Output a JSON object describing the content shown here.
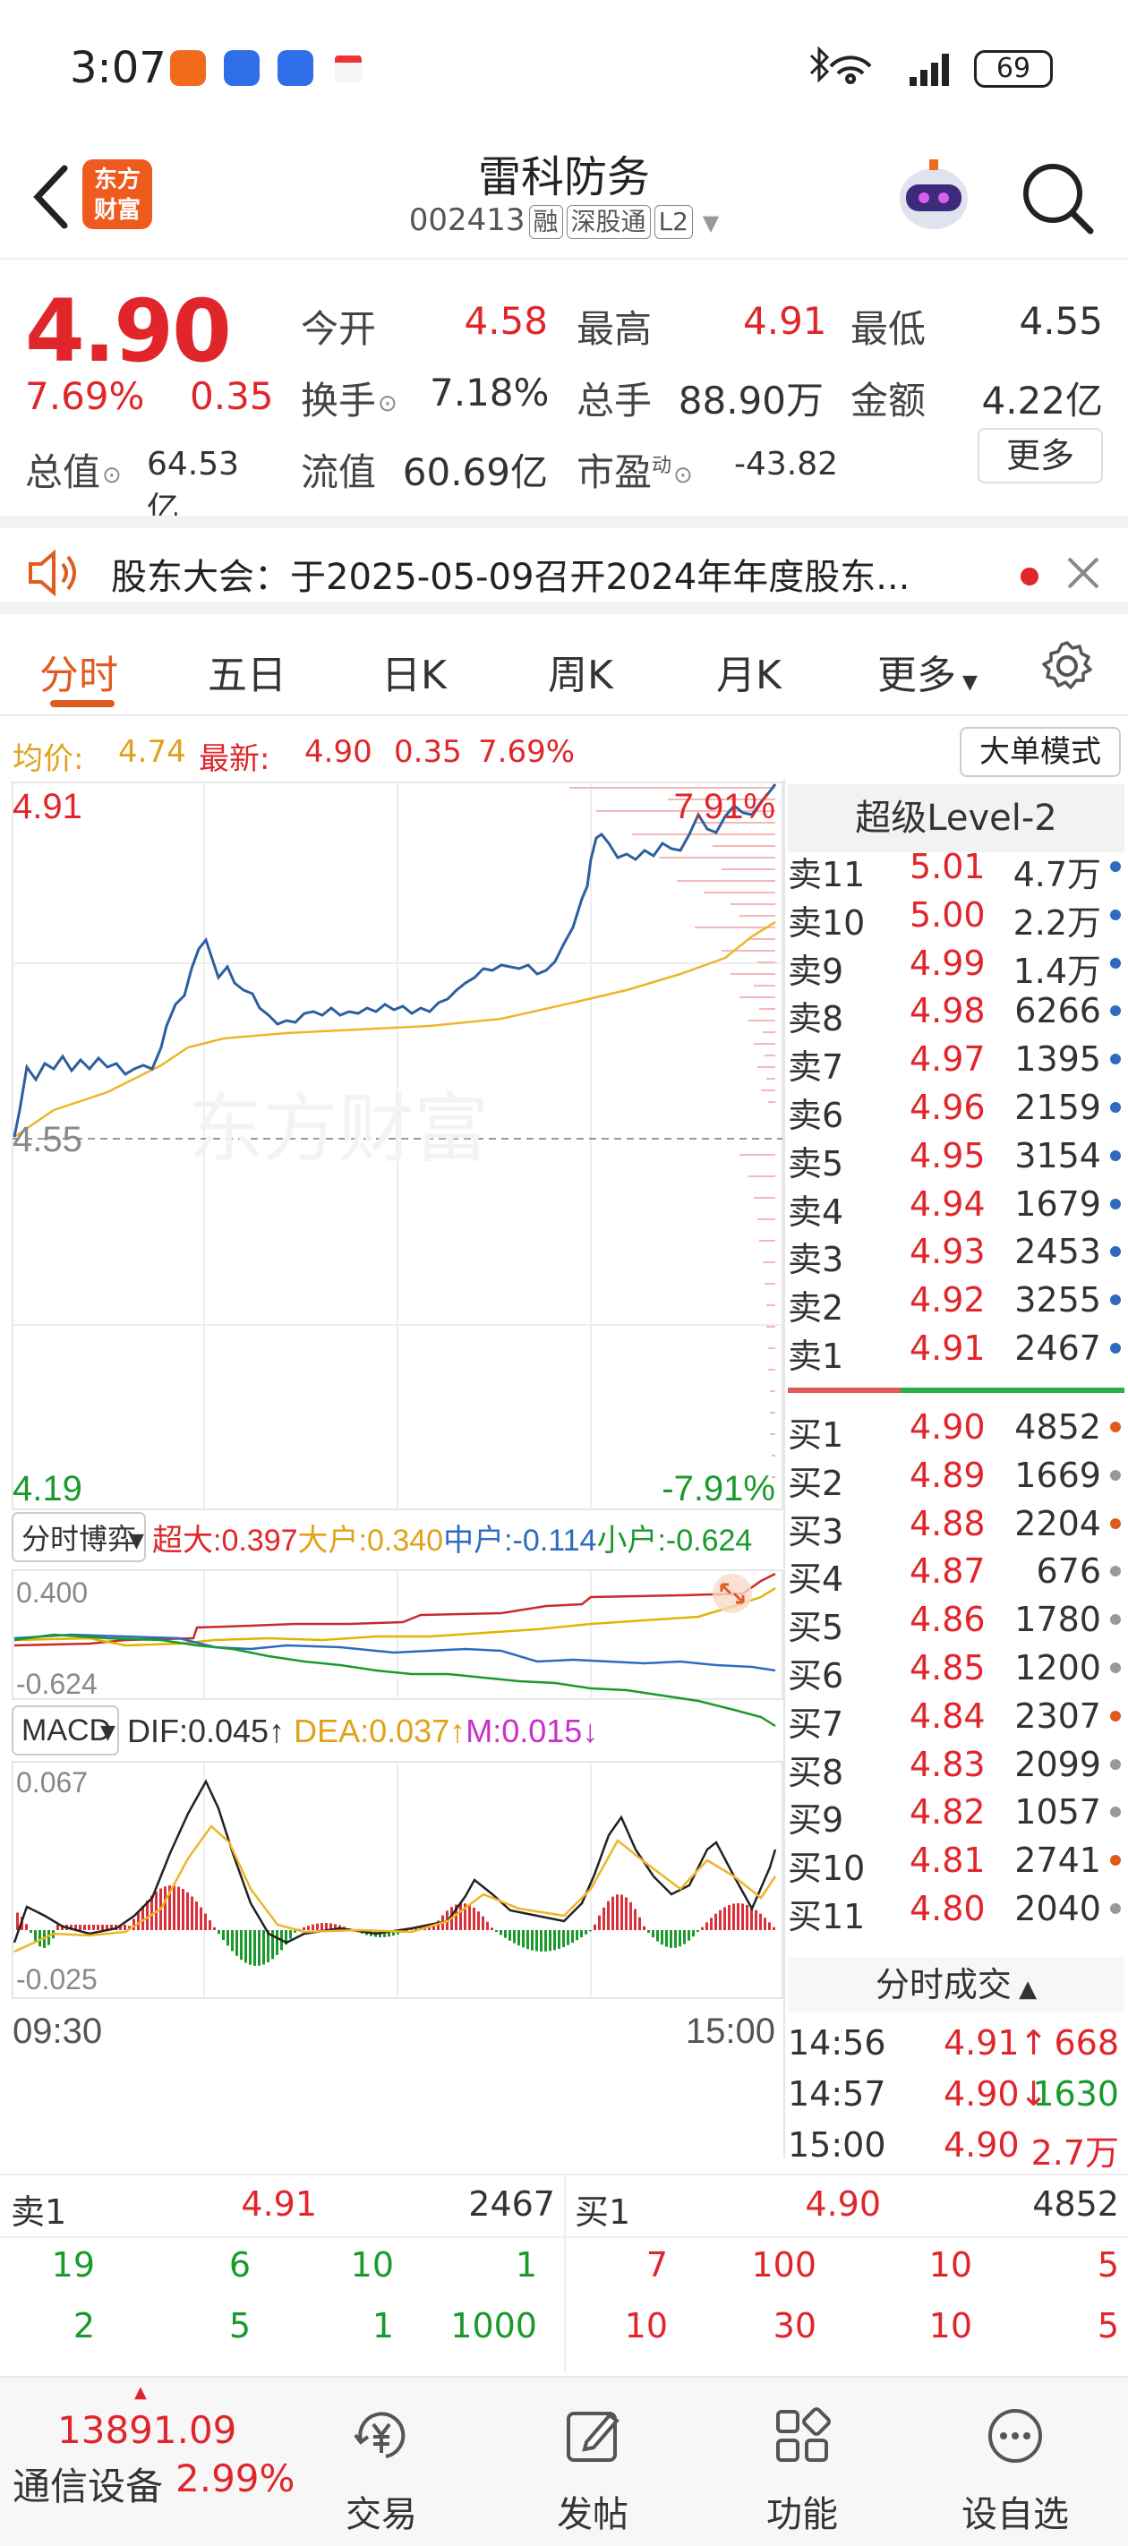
{
  "status_bar": {
    "time": "3:07",
    "battery": "69"
  },
  "header": {
    "title": "雷科防务",
    "code": "002413",
    "tags": [
      "融",
      "深股通",
      "L2"
    ],
    "logo_text": [
      "东方",
      "财富"
    ]
  },
  "quote": {
    "price": "4.90",
    "change_pct": "7.69%",
    "change": "0.35",
    "fields": [
      {
        "label": "今开",
        "value": "4.58",
        "color": "#e0262b"
      },
      {
        "label": "最高",
        "value": "4.91",
        "color": "#e0262b"
      },
      {
        "label": "最低",
        "value": "4.55",
        "color": "#333333"
      },
      {
        "label": "换手",
        "value": "7.18%",
        "color": "#333333"
      },
      {
        "label": "总手",
        "value": "88.90万",
        "color": "#333333"
      },
      {
        "label": "金额",
        "value": "4.22亿",
        "color": "#333333"
      },
      {
        "label": "总值",
        "value": "64.53亿",
        "color": "#333333"
      },
      {
        "label": "流值",
        "value": "60.69亿",
        "color": "#333333"
      },
      {
        "label": "市盈",
        "value": "-43.82",
        "color": "#333333"
      }
    ],
    "pe_sup": "动",
    "more_label": "更多"
  },
  "notice": {
    "text": "股东大会：于2025-05-09召开2024年年度股东..."
  },
  "tabs": [
    "分时",
    "五日",
    "日K",
    "周K",
    "月K",
    "更多"
  ],
  "avg_bar": {
    "avg_label": "均价:",
    "avg_value": "4.74",
    "latest_label": "最新:",
    "latest_value": "4.90",
    "change": "0.35",
    "pct": "7.69%",
    "big_mode": "大单模式"
  },
  "intraday": {
    "price_max": "4.91",
    "price_min": "4.19",
    "price_base": "4.55",
    "pct_max": "7.91%",
    "pct_min": "-7.91%",
    "time_start": "09:30",
    "time_end": "15:00",
    "watermark": "东方财富"
  },
  "fund_flow": {
    "selector": "分时博弈",
    "labels": [
      {
        "name": "超大",
        "value": "0.397",
        "color": "#e0262b"
      },
      {
        "name": "大户",
        "value": "0.340",
        "color": "#e0a21a"
      },
      {
        "name": "中户",
        "value": "-0.114",
        "color": "#2d6bc0"
      },
      {
        "name": "小户",
        "value": "-0.624",
        "color": "#1a9a2c"
      }
    ],
    "ymax": "0.400",
    "ymin": "-0.624"
  },
  "macd": {
    "selector": "MACD",
    "dif": "DIF:0.045↑",
    "dea": "DEA:0.037↑",
    "m": "M:0.015↓",
    "ymax": "0.067",
    "ymin": "-0.025"
  },
  "level2": {
    "title": "超级Level-2",
    "asks": [
      {
        "label": "卖11",
        "price": "5.01",
        "vol": "4.7万",
        "dot": "#2d6bc0"
      },
      {
        "label": "卖10",
        "price": "5.00",
        "vol": "2.2万",
        "dot": "#2d6bc0"
      },
      {
        "label": "卖9",
        "price": "4.99",
        "vol": "1.4万",
        "dot": "#2d6bc0"
      },
      {
        "label": "卖8",
        "price": "4.98",
        "vol": "6266",
        "dot": "#2d6bc0"
      },
      {
        "label": "卖7",
        "price": "4.97",
        "vol": "1395",
        "dot": "#2d6bc0"
      },
      {
        "label": "卖6",
        "price": "4.96",
        "vol": "2159",
        "dot": "#2d6bc0"
      },
      {
        "label": "卖5",
        "price": "4.95",
        "vol": "3154",
        "dot": "#2d6bc0"
      },
      {
        "label": "卖4",
        "price": "4.94",
        "vol": "1679",
        "dot": "#2d6bc0"
      },
      {
        "label": "卖3",
        "price": "4.93",
        "vol": "2453",
        "dot": "#2d6bc0"
      },
      {
        "label": "卖2",
        "price": "4.92",
        "vol": "3255",
        "dot": "#2d6bc0"
      },
      {
        "label": "卖1",
        "price": "4.91",
        "vol": "2467",
        "dot": "#2d6bc0"
      }
    ],
    "bids": [
      {
        "label": "买1",
        "price": "4.90",
        "vol": "4852",
        "dot": "#e05b1e"
      },
      {
        "label": "买2",
        "price": "4.89",
        "vol": "1669",
        "dot": "#999999"
      },
      {
        "label": "买3",
        "price": "4.88",
        "vol": "2204",
        "dot": "#e05b1e"
      },
      {
        "label": "买4",
        "price": "4.87",
        "vol": "676",
        "dot": "#999999"
      },
      {
        "label": "买5",
        "price": "4.86",
        "vol": "1780",
        "dot": "#999999"
      },
      {
        "label": "买6",
        "price": "4.85",
        "vol": "1200",
        "dot": "#999999"
      },
      {
        "label": "买7",
        "price": "4.84",
        "vol": "2307",
        "dot": "#e05b1e"
      },
      {
        "label": "买8",
        "price": "4.83",
        "vol": "2099",
        "dot": "#999999"
      },
      {
        "label": "买9",
        "price": "4.82",
        "vol": "1057",
        "dot": "#999999"
      },
      {
        "label": "买10",
        "price": "4.81",
        "vol": "2741",
        "dot": "#e05b1e"
      },
      {
        "label": "买11",
        "price": "4.80",
        "vol": "2040",
        "dot": "#999999"
      }
    ]
  },
  "trades": {
    "title": "分时成交",
    "rows": [
      {
        "time": "14:56",
        "price": "4.91↑",
        "vol": "668",
        "pcolor": "#e0262b",
        "vcolor": "#e0262b"
      },
      {
        "time": "14:57",
        "price": "4.90↓",
        "vol": "1630",
        "pcolor": "#e0262b",
        "vcolor": "#1a9a2c"
      },
      {
        "time": "15:00",
        "price": "4.90",
        "vol": "2.7万",
        "pcolor": "#e0262b",
        "vcolor": "#e0262b"
      }
    ]
  },
  "queue": {
    "sell": {
      "label": "卖1",
      "price": "4.91",
      "vol": "2467",
      "rows": [
        [
          "19",
          "6",
          "10",
          "1"
        ],
        [
          "2",
          "5",
          "1",
          "1000"
        ]
      ]
    },
    "buy": {
      "label": "买1",
      "price": "4.90",
      "vol": "4852",
      "rows": [
        [
          "7",
          "100",
          "10",
          "5"
        ],
        [
          "10",
          "30",
          "10",
          "5"
        ]
      ]
    }
  },
  "bottom_nav": {
    "index_value": "13891.09",
    "index_name": "通信设备",
    "index_pct": "2.99%",
    "items": [
      "交易",
      "发帖",
      "功能",
      "设自选"
    ]
  }
}
